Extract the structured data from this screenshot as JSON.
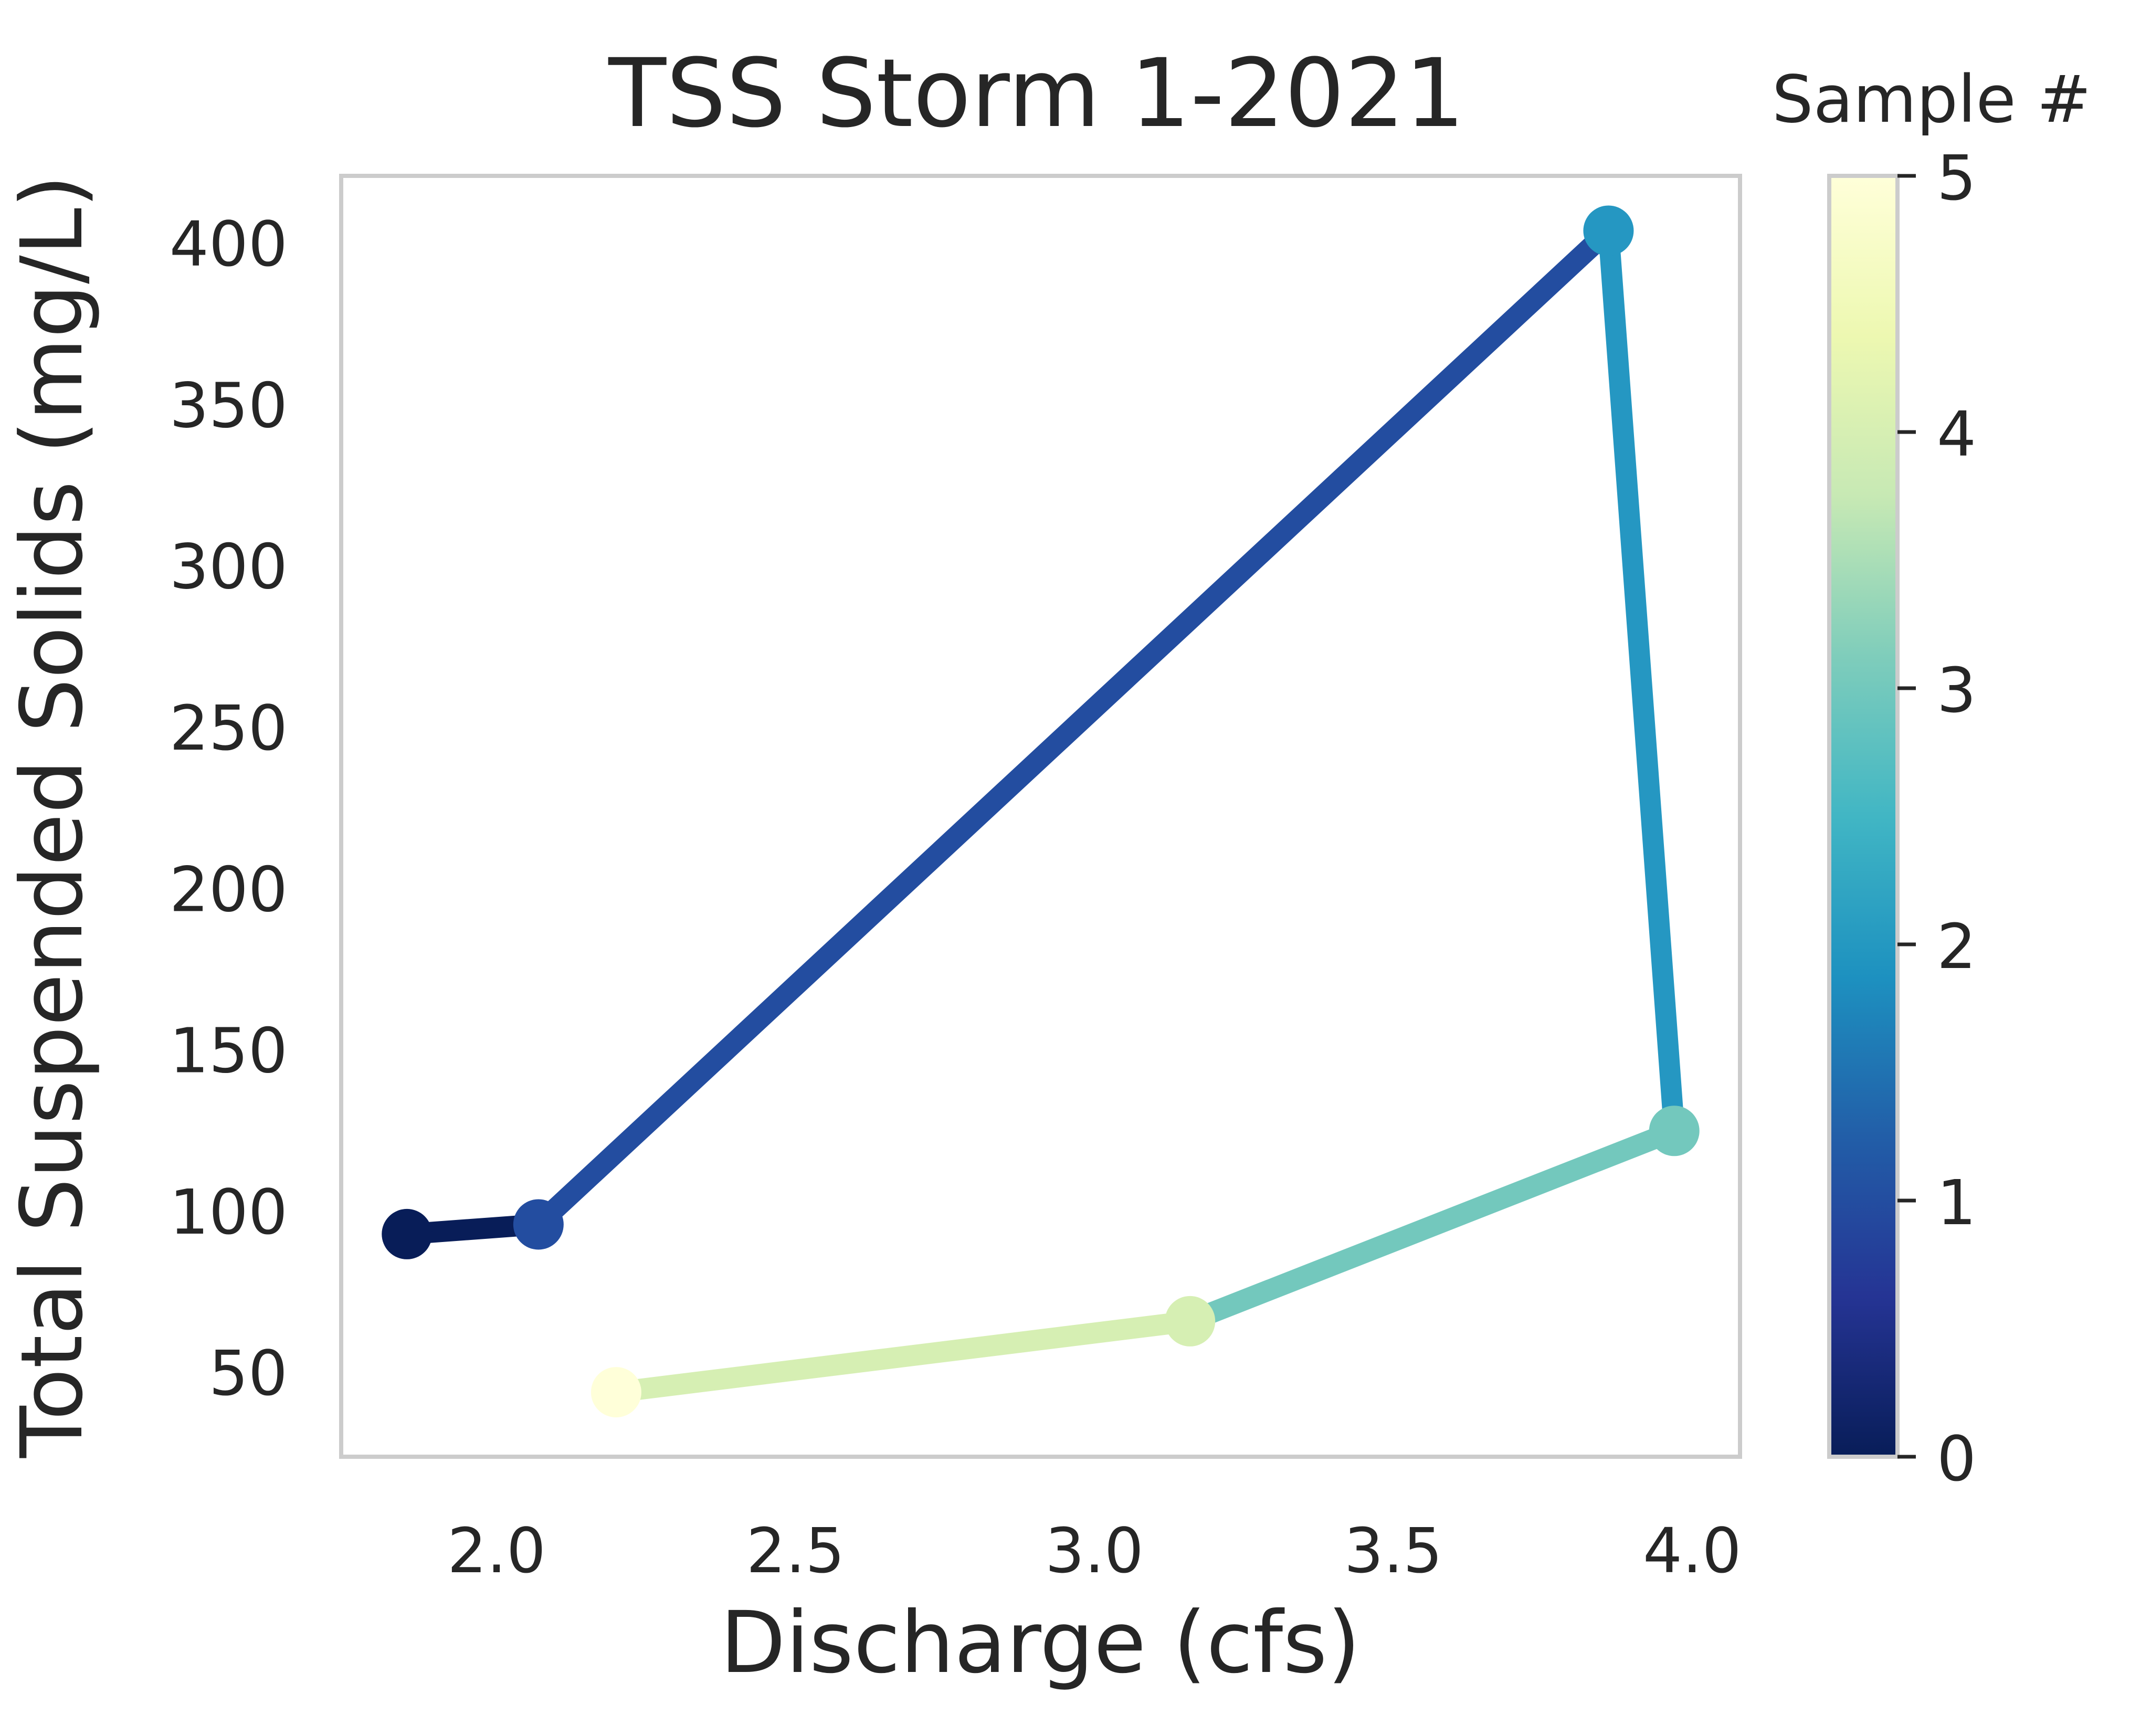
{
  "chart_data": {
    "type": "line",
    "title": "TSS Storm 1-2021",
    "xlabel": "Discharge (cfs)",
    "ylabel": "Total Suspended Solids (mg/L)",
    "xlim": [
      1.74,
      4.08
    ],
    "ylim": [
      24,
      421
    ],
    "x_ticks": [
      2.0,
      2.5,
      3.0,
      3.5,
      4.0
    ],
    "x_tick_labels": [
      "2.0",
      "2.5",
      "3.0",
      "3.5",
      "4.0"
    ],
    "y_ticks": [
      50,
      100,
      150,
      200,
      250,
      300,
      350,
      400
    ],
    "y_tick_labels": [
      "50",
      "100",
      "150",
      "200",
      "250",
      "300",
      "350",
      "400"
    ],
    "grid": false,
    "points": [
      {
        "sample": 0,
        "x": 1.85,
        "y": 93
      },
      {
        "sample": 1,
        "x": 2.07,
        "y": 96
      },
      {
        "sample": 2,
        "x": 3.86,
        "y": 404
      },
      {
        "sample": 3,
        "x": 3.97,
        "y": 125
      },
      {
        "sample": 4,
        "x": 3.16,
        "y": 66
      },
      {
        "sample": 5,
        "x": 2.2,
        "y": 44
      }
    ],
    "colorbar": {
      "label": "Sample #",
      "min": 0,
      "max": 5,
      "ticks": [
        0,
        1,
        2,
        3,
        4,
        5
      ],
      "tick_labels": [
        "0",
        "1",
        "2",
        "3",
        "4",
        "5"
      ],
      "colormap": "YlGnBu_r",
      "stops": [
        "#081d58",
        "#253494",
        "#225ea8",
        "#1d91c0",
        "#41b6c4",
        "#7fcdbb",
        "#c7e9b4",
        "#edf8b1",
        "#ffffd9"
      ]
    },
    "segment_colors": [
      "#081d58",
      "#234da0",
      "#2597c2",
      "#73c8bd",
      "#d6efb3"
    ],
    "point_colors": [
      "#081d58",
      "#234da0",
      "#2597c2",
      "#73c8bd",
      "#d6efb3",
      "#ffffd9"
    ]
  }
}
